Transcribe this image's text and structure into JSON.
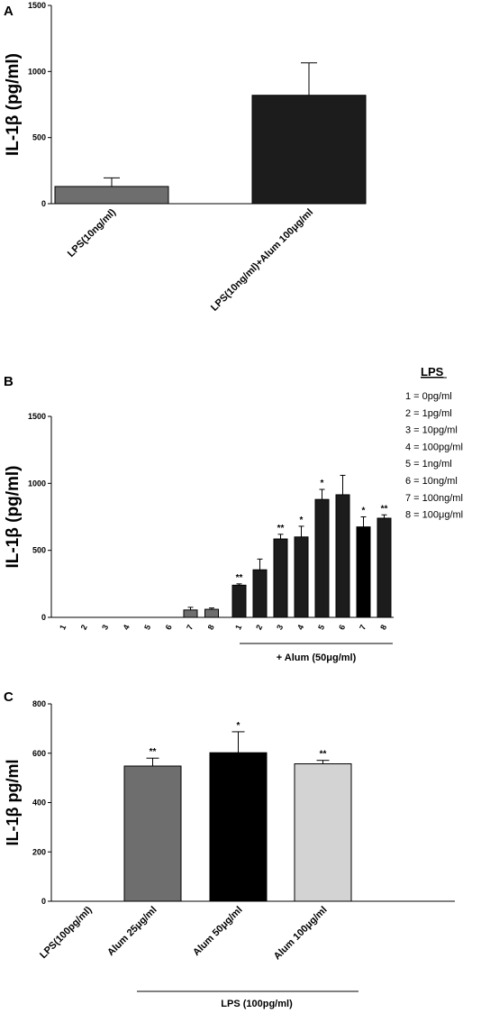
{
  "chart_data": [
    {
      "panel": "A",
      "type": "bar",
      "ylabel": "IL-1β (pg/ml)",
      "ylim": [
        0,
        1500
      ],
      "yticks": [
        0,
        500,
        1000,
        1500
      ],
      "categories": [
        "LPS(10ng/ml)",
        "LPS(10ng/ml)+Alum 100μg/ml"
      ],
      "values": [
        130,
        820
      ],
      "errors": [
        65,
        245
      ],
      "colors": [
        "#6e6e6e",
        "#1c1c1c"
      ],
      "significance": [
        "",
        ""
      ]
    },
    {
      "panel": "B",
      "type": "bar",
      "ylabel": "IL-1β (pg/ml)",
      "ylim": [
        0,
        1500
      ],
      "yticks": [
        0,
        500,
        1000,
        1500
      ],
      "categories": [
        "1",
        "2",
        "3",
        "4",
        "5",
        "6",
        "7",
        "8",
        "1",
        "2",
        "3",
        "4",
        "5",
        "6",
        "7",
        "8"
      ],
      "values": [
        0,
        0,
        0,
        0,
        0,
        0,
        55,
        60,
        240,
        355,
        585,
        600,
        880,
        915,
        675,
        740
      ],
      "errors": [
        0,
        0,
        0,
        0,
        0,
        0,
        20,
        10,
        10,
        80,
        35,
        80,
        75,
        145,
        75,
        25
      ],
      "colors": [
        "#6e6e6e",
        "#6e6e6e",
        "#6e6e6e",
        "#6e6e6e",
        "#6e6e6e",
        "#6e6e6e",
        "#6e6e6e",
        "#6e6e6e",
        "#1c1c1c",
        "#1c1c1c",
        "#1c1c1c",
        "#1c1c1c",
        "#1c1c1c",
        "#1c1c1c",
        "#000000",
        "#1c1c1c"
      ],
      "significance": [
        "",
        "",
        "",
        "",
        "",
        "",
        "",
        "",
        "**",
        "",
        "**",
        "*",
        "*",
        "",
        "*",
        "**"
      ],
      "group_label": "+ Alum (50μg/ml)",
      "legend": {
        "title": "LPS",
        "items": [
          "1 = 0pg/ml",
          "2 = 1pg/ml",
          "3 = 10pg/ml",
          "4 = 100pg/ml",
          "5 = 1ng/ml",
          "6 = 10ng/ml",
          "7 = 100ng/ml",
          "8 = 100μg/ml"
        ]
      }
    },
    {
      "panel": "C",
      "type": "bar",
      "ylabel": "IL-1β pg/ml",
      "ylim": [
        0,
        800
      ],
      "yticks": [
        0,
        200,
        400,
        600,
        800
      ],
      "categories": [
        "LPS(100pg/ml)",
        "Alum 25μg/ml",
        "Alum 50μg/ml",
        "Alum 100μg/ml"
      ],
      "values": [
        0,
        548,
        602,
        557
      ],
      "errors": [
        0,
        32,
        85,
        14
      ],
      "colors": [
        "#6e6e6e",
        "#6e6e6e",
        "#000000",
        "#d3d3d3"
      ],
      "significance": [
        "",
        "**",
        "*",
        "**"
      ],
      "group_label": "LPS (100pg/ml)"
    }
  ]
}
